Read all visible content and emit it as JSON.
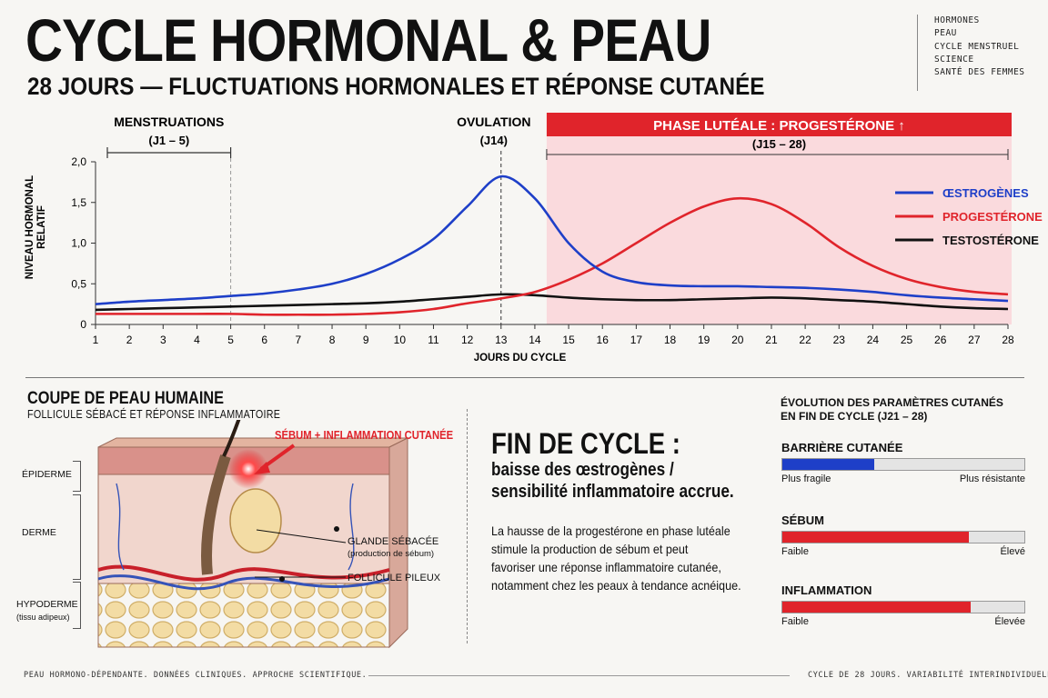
{
  "header": {
    "title": "CYCLE HORMONAL & PEAU",
    "subtitle": "28 JOURS — FLUCTUATIONS HORMONALES ET RÉPONSE CUTANÉE",
    "tags": [
      "HORMONES",
      "PEAU",
      "CYCLE MENSTRUEL",
      "SCIENCE",
      "SANTÉ DES FEMMES"
    ]
  },
  "annotations": {
    "menstruation_label": "MENSTRUATIONS",
    "menstruation_range": "(J1 – 5)",
    "ovulation_label": "OVULATION",
    "ovulation_day": "(J14)",
    "luteal_label": "PHASE LUTÉALE : PROGESTÉRONE ↑",
    "luteal_range": "(J15 – 28)"
  },
  "colors": {
    "estrogen": "#1e3fc8",
    "progesterone": "#e0242b",
    "testosterone": "#111111",
    "luteal_band": "#fadadd",
    "accent_red": "#e0242b"
  },
  "chart_data": {
    "type": "line",
    "xlabel": "JOURS DU CYCLE",
    "ylabel": "NIVEAU HORMONAL RELATIF",
    "x": [
      1,
      2,
      3,
      4,
      5,
      6,
      7,
      8,
      9,
      10,
      11,
      12,
      13,
      14,
      15,
      16,
      17,
      18,
      19,
      20,
      21,
      22,
      23,
      24,
      25,
      26,
      27,
      28
    ],
    "xlim": [
      1,
      28
    ],
    "ylim": [
      0,
      2.0
    ],
    "yticks": [
      "0",
      "0,5",
      "1,0",
      "1,5",
      "2,0"
    ],
    "legend": "right",
    "series": [
      {
        "name": "ŒSTROGÈNES",
        "color": "#1e3fc8",
        "values": [
          0.25,
          0.28,
          0.3,
          0.32,
          0.35,
          0.38,
          0.43,
          0.5,
          0.62,
          0.8,
          1.05,
          1.45,
          1.82,
          1.55,
          1.0,
          0.65,
          0.52,
          0.48,
          0.47,
          0.47,
          0.46,
          0.45,
          0.43,
          0.4,
          0.36,
          0.33,
          0.31,
          0.29
        ]
      },
      {
        "name": "PROGESTÉRONE",
        "color": "#e0242b",
        "values": [
          0.13,
          0.13,
          0.13,
          0.13,
          0.13,
          0.12,
          0.12,
          0.12,
          0.13,
          0.15,
          0.19,
          0.26,
          0.32,
          0.4,
          0.55,
          0.75,
          1.0,
          1.25,
          1.45,
          1.55,
          1.48,
          1.25,
          0.95,
          0.72,
          0.56,
          0.46,
          0.4,
          0.37
        ]
      },
      {
        "name": "TESTOSTÉRONE",
        "color": "#111111",
        "values": [
          0.18,
          0.19,
          0.2,
          0.21,
          0.22,
          0.23,
          0.24,
          0.25,
          0.26,
          0.28,
          0.31,
          0.34,
          0.37,
          0.36,
          0.33,
          0.31,
          0.3,
          0.3,
          0.31,
          0.32,
          0.33,
          0.32,
          0.3,
          0.28,
          0.25,
          0.22,
          0.2,
          0.19
        ]
      }
    ]
  },
  "skin": {
    "title": "COUPE DE PEAU HUMAINE",
    "subtitle": "FOLLICULE SÉBACÉ ET RÉPONSE INFLAMMATOIRE",
    "callout": "SÉBUM + INFLAMMATION CUTANÉE",
    "layers": [
      "ÉPIDERME",
      "DERME",
      "HYPODERME"
    ],
    "hypoderme_note": "(tissu adipeux)",
    "gland_label": "GLANDE SÉBACÉE",
    "gland_note": "(production de sébum)",
    "follicle_label": "FOLLICULE PILEUX"
  },
  "end_cycle": {
    "title": "FIN DE CYCLE :",
    "subtitle_line1": "baisse des œstrogènes /",
    "subtitle_line2": "sensibilité inflammatoire accrue.",
    "body_lines": [
      "La hausse de la progestérone en phase lutéale",
      "stimule la production de sébum et peut",
      "favoriser une réponse inflammatoire cutanée,",
      "notamment chez les peaux à tendance acnéique."
    ]
  },
  "params": {
    "title_line1": "ÉVOLUTION DES PARAMÈTRES CUTANÉS",
    "title_line2": "EN FIN DE CYCLE (J21 – 28)",
    "items": [
      {
        "label": "BARRIÈRE CUTANÉE",
        "min": "Plus fragile",
        "max": "Plus résistante",
        "level": 0.38,
        "color": "#1e3fc8"
      },
      {
        "label": "SÉBUM",
        "min": "Faible",
        "max": "Élevé",
        "level": 0.77,
        "color": "#e0242b"
      },
      {
        "label": "INFLAMMATION",
        "min": "Faible",
        "max": "Élevée",
        "level": 0.78,
        "color": "#e0242b"
      }
    ]
  },
  "footer": {
    "left": "PEAU  HORMONO-DÉPENDANTE. DONNÉES CLINIQUES. APPROCHE SCIENTIFIQUE.",
    "right": "CYCLE DE 28 JOURS. VARIABILITÉ INTERINDIVIDUELLE."
  }
}
